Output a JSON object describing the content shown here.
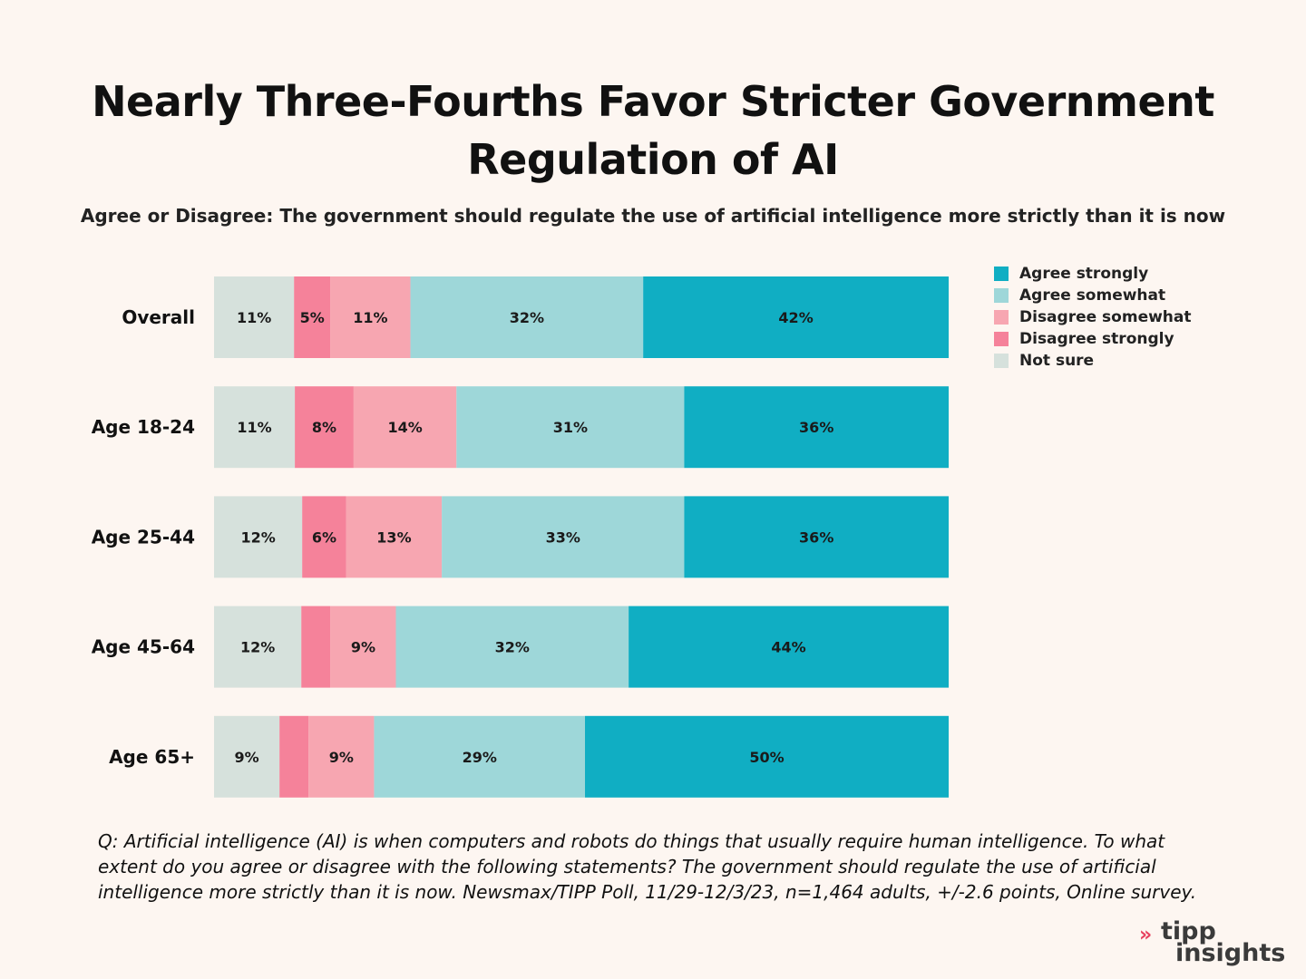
{
  "chart_data": {
    "type": "bar",
    "orientation": "horizontal",
    "stacked": true,
    "title": "Nearly Three-Fourths Favor Stricter Government Regulation of AI",
    "subtitle": "Agree or Disagree: The government should regulate the use of artificial intelligence more strictly than it is now",
    "categories": [
      "Overall",
      "Age 18-24",
      "Age 25-44",
      "Age 45-64",
      "Age 65+"
    ],
    "series": [
      {
        "name": "Not sure",
        "color": "#d6e1dc",
        "values": [
          11,
          11,
          12,
          12,
          9
        ],
        "labels": [
          "11%",
          "11%",
          "12%",
          "12%",
          "9%"
        ]
      },
      {
        "name": "Disagree strongly",
        "color": "#f5829a",
        "values": [
          5,
          8,
          6,
          4,
          4
        ],
        "labels": [
          "5%",
          "8%",
          "6%",
          "",
          ""
        ]
      },
      {
        "name": "Disagree somewhat",
        "color": "#f7a6b1",
        "values": [
          11,
          14,
          13,
          9,
          9
        ],
        "labels": [
          "11%",
          "14%",
          "13%",
          "9%",
          "9%"
        ]
      },
      {
        "name": "Agree somewhat",
        "color": "#9ed7d9",
        "values": [
          32,
          31,
          33,
          32,
          29
        ],
        "labels": [
          "32%",
          "31%",
          "33%",
          "32%",
          "29%"
        ]
      },
      {
        "name": "Agree strongly",
        "color": "#10aec3",
        "values": [
          42,
          36,
          36,
          44,
          50
        ],
        "labels": [
          "42%",
          "36%",
          "36%",
          "44%",
          "50%"
        ]
      }
    ],
    "legend": {
      "position": "top-right",
      "order": [
        "Agree strongly",
        "Agree somewhat",
        "Disagree somewhat",
        "Disagree strongly",
        "Not sure"
      ]
    },
    "grid": false
  },
  "footnote": "Q: Artificial intelligence (AI) is when computers and robots do things that usually require human intelligence. To what extent do you agree or disagree with the following statements? The government should regulate the use of artificial intelligence more strictly than it is now. Newsmax/TIPP Poll, 11/29-12/3/23, n=1,464 adults, +/-2.6 points, Online survey.",
  "logo": {
    "line1": "tipp",
    "line2": "insights",
    "arrow": "»",
    "arrow_color": "#e8415f"
  }
}
